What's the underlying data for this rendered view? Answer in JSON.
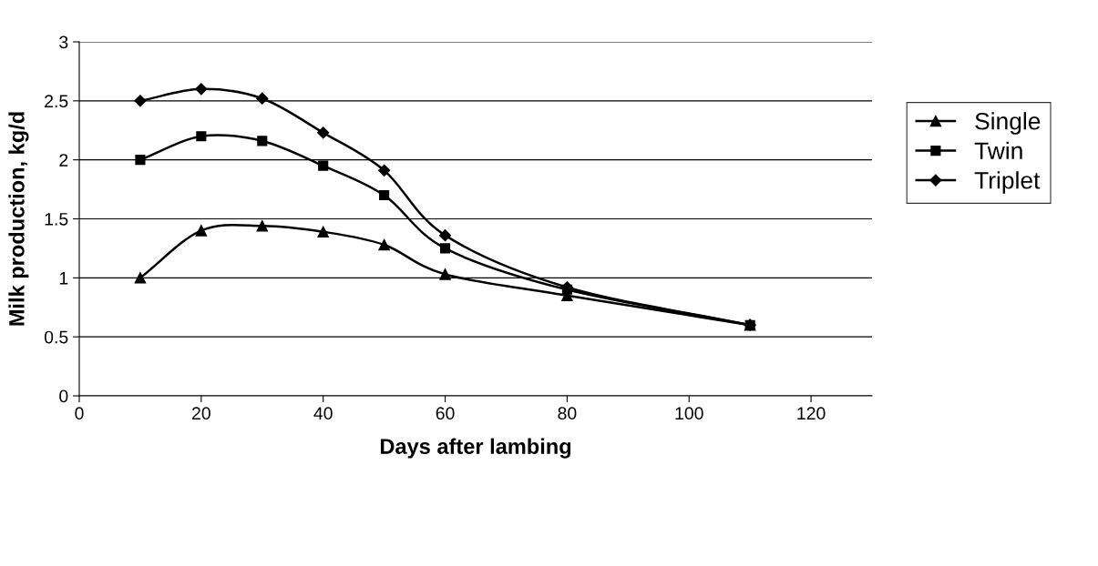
{
  "chart_data": {
    "type": "line",
    "xlabel": "Days after lambing",
    "ylabel": "Milk production, kg/d",
    "x": [
      10,
      20,
      30,
      40,
      50,
      60,
      80,
      110
    ],
    "series": [
      {
        "name": "Single",
        "color": "#000000",
        "marker": "triangle",
        "values": [
          1.0,
          1.4,
          1.44,
          1.39,
          1.28,
          1.03,
          0.85,
          0.6
        ]
      },
      {
        "name": "Twin",
        "color": "#000000",
        "marker": "square",
        "values": [
          2.0,
          2.2,
          2.16,
          1.95,
          1.7,
          1.25,
          0.9,
          0.6
        ]
      },
      {
        "name": "Triplet",
        "color": "#000000",
        "marker": "diamond",
        "values": [
          2.5,
          2.6,
          2.52,
          2.23,
          1.91,
          1.36,
          0.92,
          0.6
        ]
      }
    ],
    "xlim": [
      0,
      130
    ],
    "xticks": [
      0,
      20,
      40,
      60,
      80,
      100,
      120
    ],
    "ylim": [
      0,
      3
    ],
    "yticks": [
      0,
      0.5,
      1,
      1.5,
      2,
      2.5,
      3
    ],
    "grid": "y",
    "legend": "right",
    "line_style": "solid"
  }
}
